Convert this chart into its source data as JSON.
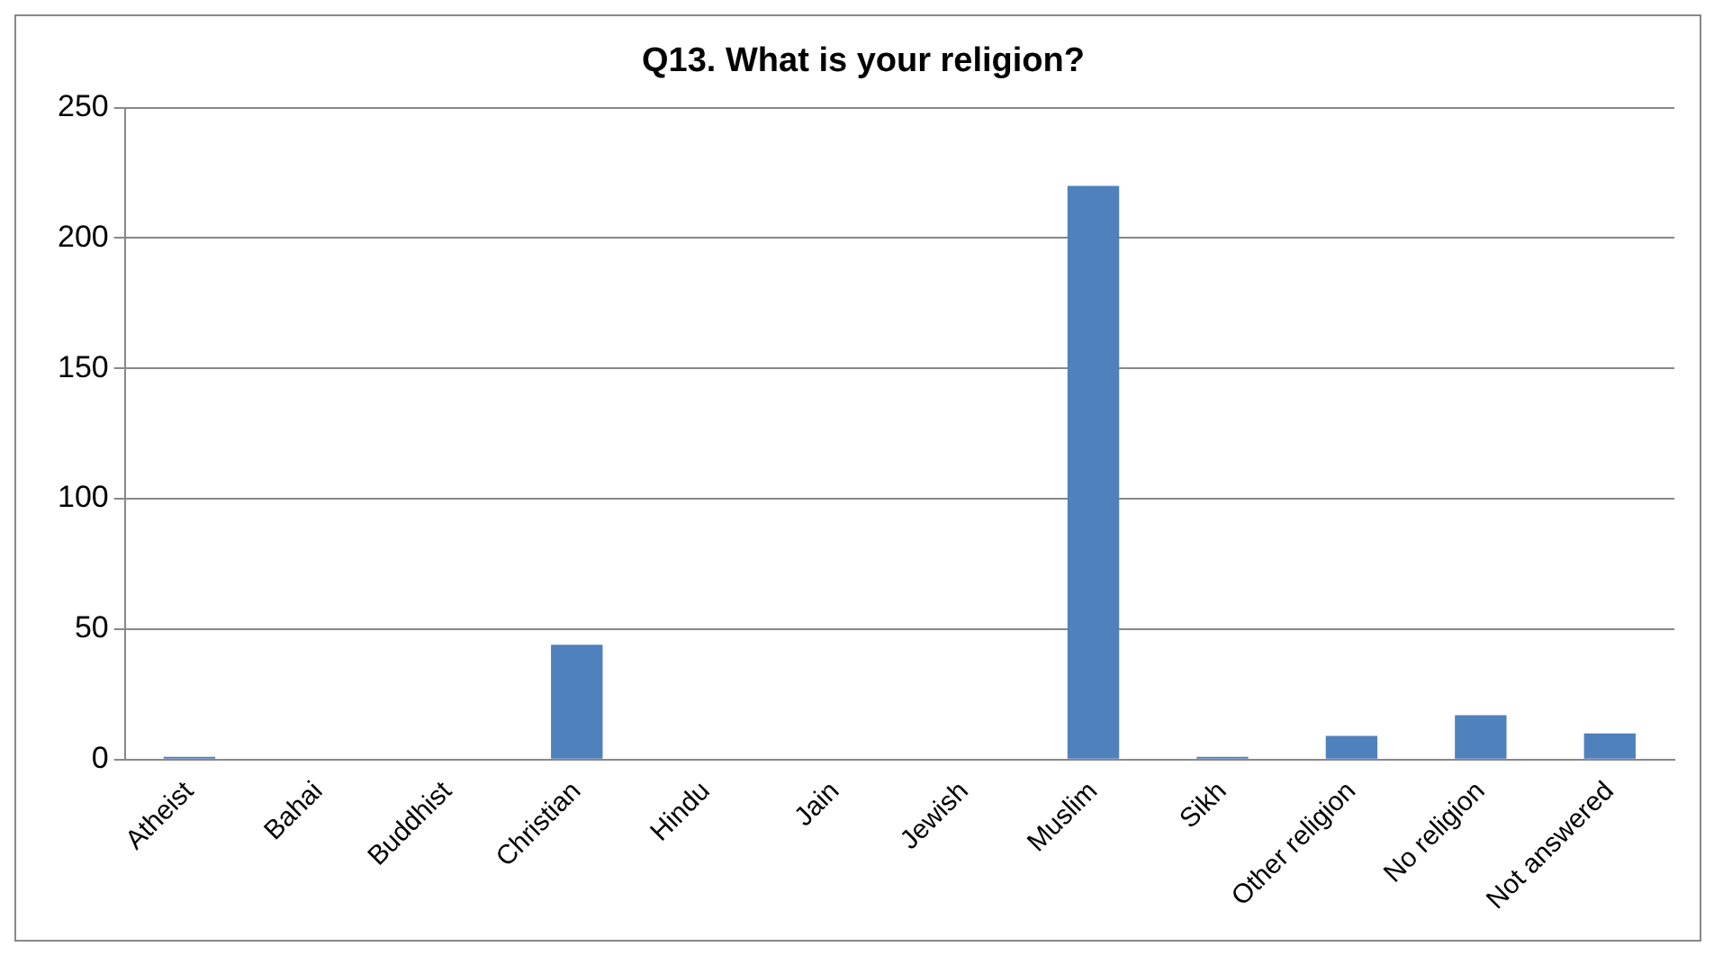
{
  "chart_data": {
    "type": "bar",
    "title": "Q13. What is your religion?",
    "categories": [
      "Atheist",
      "Bahai",
      "Buddhist",
      "Christian",
      "Hindu",
      "Jain",
      "Jewish",
      "Muslim",
      "Sikh",
      "Other religion",
      "No religion",
      "Not answered"
    ],
    "values": [
      1,
      0,
      0,
      44,
      0,
      0,
      0,
      220,
      1,
      9,
      17,
      10
    ],
    "color": "#4f81bd",
    "ylim": [
      0,
      250
    ],
    "yticks": [
      0,
      50,
      100,
      150,
      200,
      250
    ],
    "grid": "y",
    "legend": false
  }
}
